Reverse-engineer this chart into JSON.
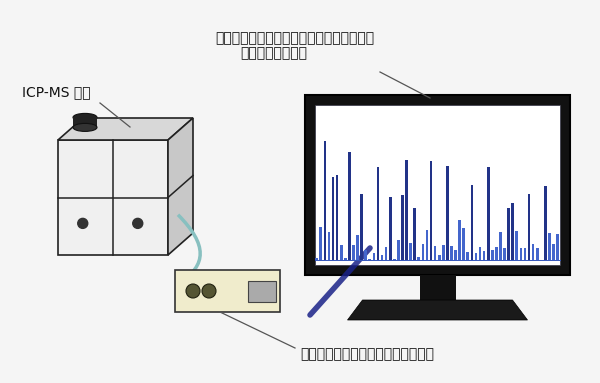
{
  "bg_color": "#f5f5f5",
  "title_line1": "時系列プロファイルとイベント面積分値を",
  "title_line2": "リアルタイム計測",
  "label_icpms": "ICP-MS 装置",
  "label_system": "高速パルスカウンティングシステム",
  "font_size_labels": 10,
  "monitor_screen_color": "#ffffff",
  "monitor_frame_color": "#111111",
  "bar_color_light": "#4466cc",
  "bar_color_dark": "#223388",
  "icp_front_color": "#f0f0f0",
  "icp_top_color": "#d8d8d8",
  "icp_right_color": "#c8c8c8",
  "icp_border": "#222222",
  "device_color": "#f0eccc",
  "device_border": "#333333",
  "cable_color": "#88c0c0",
  "connector_color": "#1a2288",
  "arrow_color": "#555555",
  "stand_color": "#111111",
  "base_color": "#1a1a1a"
}
